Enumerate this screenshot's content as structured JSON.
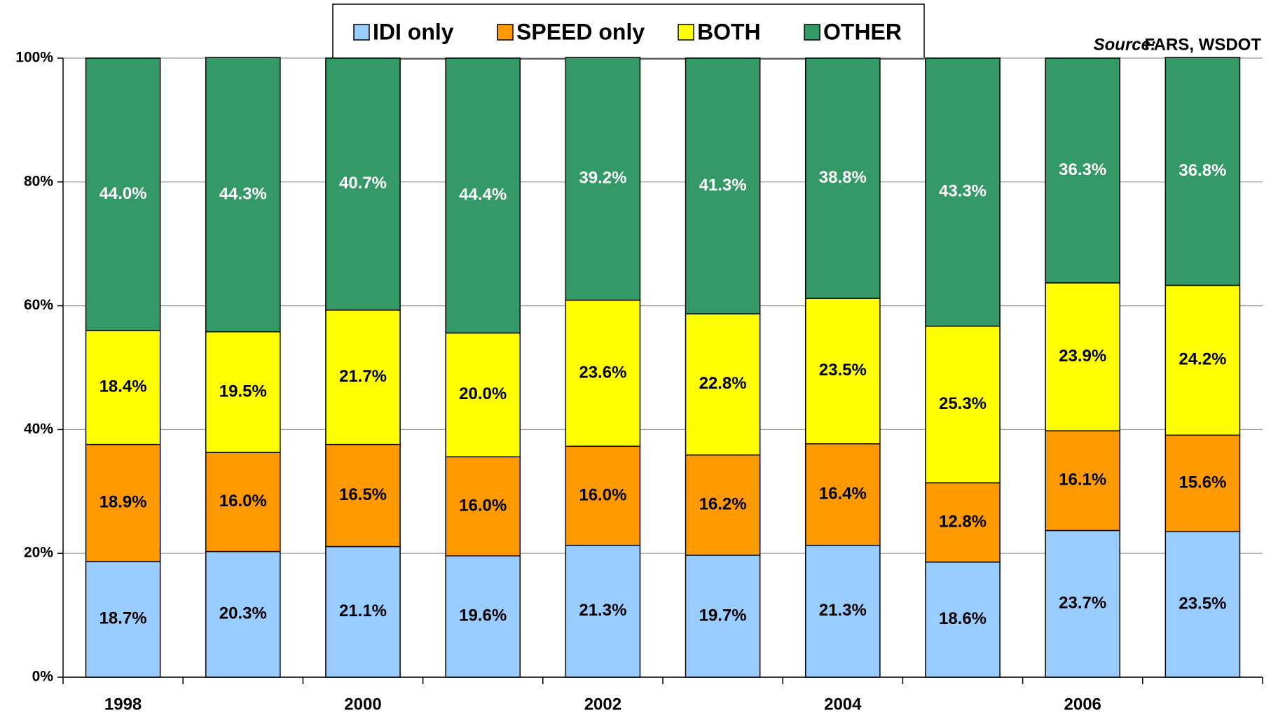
{
  "chart_data": {
    "type": "stacked_bar",
    "source_label": "Source:",
    "source": "FARS, WSDOT",
    "categories": [
      "1998",
      null,
      "2000",
      null,
      "2002",
      null,
      "2004",
      null,
      "2006",
      null
    ],
    "series": [
      {
        "name": "IDI only",
        "color": "#99ccff",
        "values": [
          18.7,
          20.3,
          21.1,
          19.6,
          21.3,
          19.7,
          21.3,
          18.6,
          23.7,
          23.5
        ],
        "value_labels": [
          "18.7%",
          "20.3%",
          "21.1%",
          "19.6%",
          "21.3%",
          "19.7%",
          "21.3%",
          "18.6%",
          "23.7%",
          "23.5%"
        ]
      },
      {
        "name": "SPEED only",
        "color": "#ff9900",
        "values": [
          18.9,
          16.0,
          16.5,
          16.0,
          16.0,
          16.2,
          16.4,
          12.8,
          16.1,
          15.6
        ],
        "value_labels": [
          "18.9%",
          "16.0%",
          "16.5%",
          "16.0%",
          "16.0%",
          "16.2%",
          "16.4%",
          "12.8%",
          "16.1%",
          "15.6%"
        ]
      },
      {
        "name": "BOTH",
        "color": "#ffff00",
        "values": [
          18.4,
          19.5,
          21.7,
          20.0,
          23.6,
          22.8,
          23.5,
          25.3,
          23.9,
          24.2
        ],
        "value_labels": [
          "18.4%",
          "19.5%",
          "21.7%",
          "20.0%",
          "23.6%",
          "22.8%",
          "23.5%",
          "25.3%",
          "23.9%",
          "24.2%"
        ]
      },
      {
        "name": "OTHER",
        "color": "#339966",
        "values": [
          44.0,
          44.3,
          40.7,
          44.4,
          39.2,
          41.3,
          38.8,
          43.3,
          36.3,
          36.8
        ],
        "value_labels": [
          "44.0%",
          "44.3%",
          "40.7%",
          "44.4%",
          "39.2%",
          "41.3%",
          "38.8%",
          "43.3%",
          "36.3%",
          "36.8%"
        ]
      }
    ],
    "ylim": [
      0,
      100
    ],
    "yticks": [
      {
        "value": 0,
        "label": "0%"
      },
      {
        "value": 20,
        "label": "20%"
      },
      {
        "value": 40,
        "label": "40%"
      },
      {
        "value": 60,
        "label": "60%"
      },
      {
        "value": 80,
        "label": "80%"
      },
      {
        "value": 100,
        "label": "100%"
      }
    ],
    "grid": true
  }
}
